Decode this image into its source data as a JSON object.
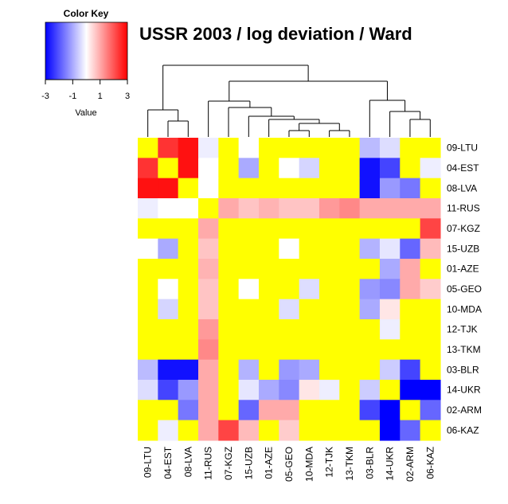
{
  "chart_data": {
    "type": "heatmap",
    "title": "USSR 2003 / log deviation / Ward",
    "color_key": {
      "title": "Color Key",
      "xlabel": "Value",
      "ticks": [
        "-3",
        "-1",
        "1",
        "3"
      ],
      "range": [
        -3,
        3
      ],
      "colors": {
        "low": "#0000ff",
        "mid": "#ffffff",
        "high": "#ff0000",
        "neutral": "#ffff00"
      }
    },
    "columns": [
      "09-LTU",
      "04-EST",
      "08-LVA",
      "11-RUS",
      "07-KGZ",
      "15-UZB",
      "01-AZE",
      "05-GEO",
      "10-MDA",
      "12-TJK",
      "13-TKM",
      "03-BLR",
      "14-UKR",
      "02-ARM",
      "06-KAZ"
    ],
    "rows": [
      "09-LTU",
      "04-EST",
      "08-LVA",
      "11-RUS",
      "07-KGZ",
      "15-UZB",
      "01-AZE",
      "05-GEO",
      "10-MDA",
      "12-TJK",
      "13-TKM",
      "03-BLR",
      "14-UKR",
      "02-ARM",
      "06-KAZ"
    ],
    "values": [
      [
        null,
        2.4,
        2.8,
        -0.2,
        null,
        0.0,
        null,
        null,
        null,
        null,
        null,
        -0.8,
        -0.4,
        null,
        null
      ],
      [
        2.4,
        null,
        2.8,
        0.0,
        null,
        -1.0,
        null,
        0.0,
        -0.5,
        null,
        null,
        -2.8,
        -2.2,
        null,
        -0.2
      ],
      [
        2.8,
        2.8,
        null,
        0.0,
        null,
        null,
        null,
        null,
        null,
        null,
        null,
        -2.8,
        -1.2,
        -1.6,
        null
      ],
      [
        -0.2,
        0.0,
        0.0,
        null,
        1.0,
        0.7,
        0.9,
        0.7,
        0.7,
        1.2,
        1.4,
        1.0,
        1.0,
        1.0,
        1.0
      ],
      [
        null,
        null,
        null,
        1.0,
        null,
        null,
        null,
        null,
        null,
        null,
        null,
        null,
        null,
        null,
        2.2
      ],
      [
        0.0,
        -1.0,
        null,
        0.7,
        null,
        null,
        null,
        0.0,
        null,
        null,
        null,
        -0.9,
        -0.3,
        -1.8,
        0.8
      ],
      [
        null,
        null,
        null,
        0.9,
        null,
        null,
        null,
        null,
        null,
        null,
        null,
        null,
        -1.0,
        1.0,
        null
      ],
      [
        null,
        0.0,
        null,
        0.7,
        null,
        0.0,
        null,
        null,
        -0.4,
        null,
        null,
        -1.2,
        -1.4,
        1.0,
        0.6
      ],
      [
        null,
        -0.5,
        null,
        0.7,
        null,
        null,
        null,
        -0.4,
        null,
        null,
        null,
        -1.0,
        0.3,
        null,
        null
      ],
      [
        null,
        null,
        null,
        1.2,
        null,
        null,
        null,
        null,
        null,
        null,
        null,
        null,
        -0.2,
        null,
        null
      ],
      [
        null,
        null,
        null,
        1.4,
        null,
        null,
        null,
        null,
        null,
        null,
        null,
        null,
        null,
        null,
        null
      ],
      [
        -0.8,
        -2.8,
        -2.8,
        1.0,
        null,
        -0.9,
        null,
        -1.2,
        -1.0,
        null,
        null,
        null,
        -0.6,
        -2.2,
        null
      ],
      [
        -0.4,
        -2.2,
        -1.2,
        1.0,
        null,
        -0.3,
        -1.0,
        -1.4,
        0.3,
        -0.2,
        null,
        -0.6,
        null,
        -3.0,
        -3.0
      ],
      [
        null,
        null,
        -1.6,
        1.0,
        null,
        -1.8,
        1.0,
        1.0,
        null,
        null,
        null,
        -2.2,
        -3.0,
        null,
        -1.8
      ],
      [
        null,
        -0.2,
        null,
        1.0,
        2.2,
        0.8,
        null,
        0.6,
        null,
        null,
        null,
        null,
        -3.0,
        -1.8,
        null
      ]
    ],
    "dendrogram": "ward"
  }
}
